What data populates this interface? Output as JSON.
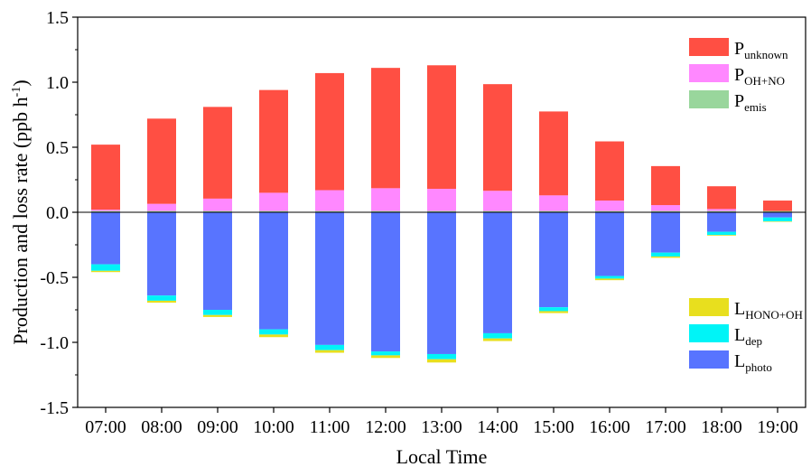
{
  "chart_data": {
    "type": "bar",
    "stacked": true,
    "xlabel": "Local Time",
    "ylabel": "Production and loss rate (ppb h",
    "ylabel_sup": "-1",
    "ylabel_close": ")",
    "ylim": [
      -1.5,
      1.5
    ],
    "yticks": [
      "-1.5",
      "-1.0",
      "-0.5",
      "0.0",
      "0.5",
      "1.0",
      "1.5"
    ],
    "ytick_values": [
      -1.5,
      -1.0,
      -0.5,
      0.0,
      0.5,
      1.0,
      1.5
    ],
    "categories": [
      "07:00",
      "08:00",
      "09:00",
      "10:00",
      "11:00",
      "12:00",
      "13:00",
      "14:00",
      "15:00",
      "16:00",
      "17:00",
      "18:00",
      "19:00"
    ],
    "series": [
      {
        "name": "P_emis",
        "label_main": "P",
        "label_sub": "emis",
        "color": "#99d69c",
        "sign": "positive",
        "values": [
          0.01,
          0.01,
          0.01,
          0.01,
          0.01,
          0.01,
          0.01,
          0.01,
          0.01,
          0.01,
          0.01,
          0.01,
          0.01
        ]
      },
      {
        "name": "P_OH+NO",
        "label_main": "P",
        "label_sub": "OH+NO",
        "color": "#ff88ff",
        "sign": "positive",
        "values": [
          0.01,
          0.055,
          0.095,
          0.14,
          0.16,
          0.175,
          0.17,
          0.155,
          0.12,
          0.08,
          0.045,
          0.015,
          0.0
        ]
      },
      {
        "name": "P_unknown",
        "label_main": "P",
        "label_sub": "unknown",
        "color": "#ff4f43",
        "sign": "positive",
        "values": [
          0.5,
          0.655,
          0.705,
          0.79,
          0.9,
          0.925,
          0.95,
          0.82,
          0.645,
          0.455,
          0.3,
          0.175,
          0.08
        ]
      },
      {
        "name": "L_photo",
        "label_main": "L",
        "label_sub": "photo",
        "color": "#5874ff",
        "sign": "negative",
        "values": [
          -0.4,
          -0.64,
          -0.75,
          -0.9,
          -1.02,
          -1.07,
          -1.09,
          -0.93,
          -0.73,
          -0.49,
          -0.31,
          -0.15,
          -0.04
        ]
      },
      {
        "name": "L_dep",
        "label_main": "L",
        "label_sub": "dep",
        "color": "#00f4f7",
        "sign": "negative",
        "values": [
          -0.05,
          -0.04,
          -0.04,
          -0.04,
          -0.04,
          -0.03,
          -0.04,
          -0.04,
          -0.03,
          -0.02,
          -0.03,
          -0.025,
          -0.03
        ]
      },
      {
        "name": "L_HONO+OH",
        "label_main": "L",
        "label_sub": "HONO+OH",
        "color": "#e8df1e",
        "sign": "negative",
        "values": [
          -0.01,
          -0.015,
          -0.015,
          -0.02,
          -0.02,
          -0.02,
          -0.025,
          -0.02,
          -0.015,
          -0.012,
          -0.01,
          -0.005,
          -0.003
        ]
      }
    ],
    "legend_upper": [
      "P_unknown",
      "P_OH+NO",
      "P_emis"
    ],
    "legend_lower": [
      "L_HONO+OH",
      "L_dep",
      "L_photo"
    ]
  }
}
